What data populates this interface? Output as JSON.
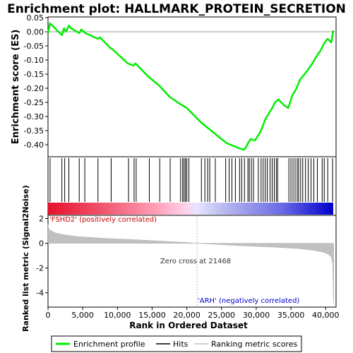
{
  "chart_data": {
    "type": "line",
    "title": "Enrichment plot: HALLMARK_PROTEIN_SECRETION",
    "top_panel": {
      "ylabel": "Enrichment score (ES)",
      "ylim": [
        -0.44,
        0.05
      ],
      "yticks": [
        "0.05",
        "0.00",
        "-0.05",
        "-0.10",
        "-0.15",
        "-0.20",
        "-0.25",
        "-0.30",
        "-0.35",
        "-0.40"
      ],
      "ytick_values": [
        0.05,
        0.0,
        -0.05,
        -0.1,
        -0.15,
        -0.2,
        -0.25,
        -0.3,
        -0.35,
        -0.4
      ],
      "series": [
        {
          "name": "Enrichment profile",
          "color": "#00ee00",
          "x": [
            0,
            300,
            2000,
            2300,
            2600,
            3000,
            3300,
            4500,
            4800,
            5400,
            7200,
            7500,
            9000,
            9200,
            11500,
            12300,
            12600,
            14500,
            16000,
            17500,
            19000,
            20000,
            21000,
            22000,
            23000,
            24000,
            25000,
            25800,
            26300,
            26800,
            27300,
            27800,
            28200,
            28500,
            28800,
            29200,
            29800,
            30200,
            30600,
            31000,
            31300,
            31800,
            32300,
            32700,
            33200,
            34000,
            34600,
            35200,
            35800,
            36300,
            36800,
            37300,
            38000,
            38600,
            39300,
            39800,
            40300,
            40800,
            41100
          ],
          "y": [
            -0.005,
            0.03,
            -0.012,
            0.012,
            0.0,
            0.022,
            0.013,
            -0.005,
            0.008,
            -0.005,
            -0.025,
            -0.02,
            -0.058,
            -0.06,
            -0.112,
            -0.12,
            -0.112,
            -0.16,
            -0.19,
            -0.23,
            -0.255,
            -0.27,
            -0.295,
            -0.32,
            -0.34,
            -0.36,
            -0.38,
            -0.395,
            -0.4,
            -0.405,
            -0.41,
            -0.415,
            -0.418,
            -0.41,
            -0.395,
            -0.38,
            -0.385,
            -0.37,
            -0.355,
            -0.33,
            -0.31,
            -0.29,
            -0.27,
            -0.25,
            -0.24,
            -0.26,
            -0.27,
            -0.225,
            -0.2,
            -0.17,
            -0.155,
            -0.14,
            -0.115,
            -0.09,
            -0.065,
            -0.04,
            -0.025,
            -0.038,
            0.005
          ]
        }
      ]
    },
    "hits_panel": {
      "legend_name": "Hits",
      "hit_positions": [
        300,
        2000,
        2400,
        3000,
        4500,
        5300,
        7200,
        9100,
        11600,
        12400,
        12700,
        14600,
        16100,
        17600,
        19100,
        19400,
        19600,
        19800,
        20000,
        20300,
        22100,
        22600,
        23000,
        23300,
        24100,
        25600,
        26100,
        26500,
        27000,
        27600,
        27900,
        28300,
        28800,
        29000,
        29300,
        29600,
        30300,
        30700,
        31000,
        31300,
        31600,
        32000,
        32300,
        32600,
        32900,
        33100,
        34700,
        35000,
        35300,
        35600,
        35900,
        36100,
        36400,
        36700,
        37100,
        37500,
        37900,
        38300,
        38800,
        39500,
        39800,
        40300,
        41000
      ],
      "color_bar": {
        "left_label": "'FSHD2' (positively correlated)",
        "right_label": "'ARH' (negatively correlated)",
        "left_label_color": "#cc0000",
        "right_label_color": "#0000cc"
      }
    },
    "metric_panel": {
      "ylabel": "Ranked list metric (Signal2Noise)",
      "legend_name": "Ranking metric scores",
      "ylim": [
        -5.1,
        2.2
      ],
      "yticks": [
        "2",
        "0",
        "-2",
        "-4"
      ],
      "ytick_values": [
        2,
        0,
        -2,
        -4
      ],
      "zero_cross_label": "Zero cross at 21468",
      "zero_cross": 21468,
      "fill_color": "#c0c0c0",
      "x": [
        0,
        100,
        500,
        1000,
        2000,
        4000,
        8000,
        12000,
        16000,
        20000,
        21468,
        24000,
        28000,
        32000,
        36000,
        38000,
        39500,
        40300,
        40800,
        41000,
        41050,
        41100,
        41150
      ],
      "y": [
        1.5,
        1.15,
        1.0,
        0.85,
        0.72,
        0.55,
        0.4,
        0.3,
        0.18,
        0.06,
        0.0,
        -0.08,
        -0.2,
        -0.3,
        -0.42,
        -0.55,
        -0.7,
        -0.85,
        -1.1,
        -1.6,
        -2.5,
        -4.0,
        -4.85
      ]
    },
    "xlabel": "Rank in Ordered Dataset",
    "xlim": [
      0,
      41500
    ],
    "xticks": [
      "0",
      "5,000",
      "10,000",
      "15,000",
      "20,000",
      "25,000",
      "30,000",
      "35,000",
      "40,000"
    ],
    "xtick_values": [
      0,
      5000,
      10000,
      15000,
      20000,
      25000,
      30000,
      35000,
      40000
    ],
    "legend": [
      "Enrichment profile",
      "Hits",
      "Ranking metric scores"
    ],
    "grid": false
  }
}
